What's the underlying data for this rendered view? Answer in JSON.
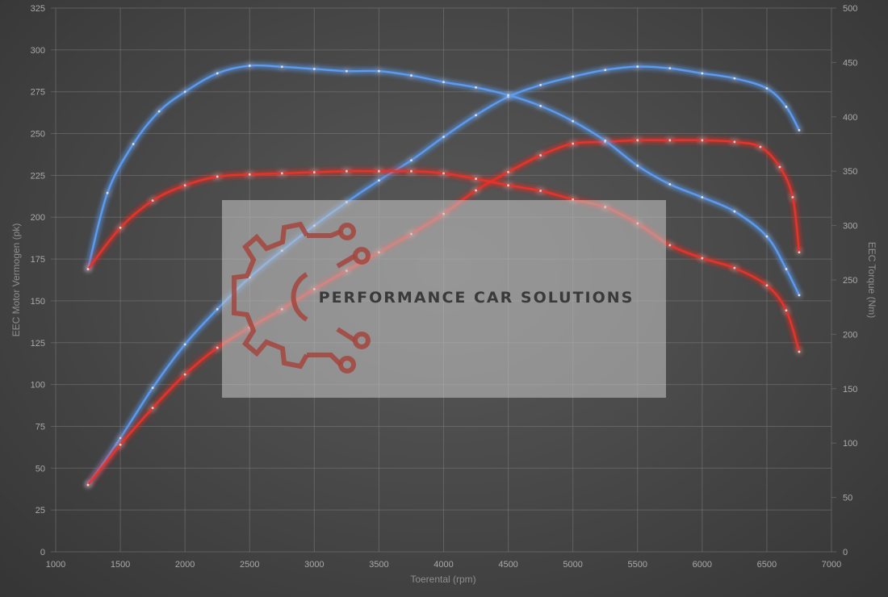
{
  "chart_data": {
    "type": "line",
    "xlabel": "Toerental (rpm)",
    "ylabel_left": "EEC Motor Vermogen (pk)",
    "ylabel_right": "EEC Torque (Nm)",
    "xlim": [
      1000,
      7000
    ],
    "ylim_left": [
      0,
      325
    ],
    "ylim_right": [
      0,
      500
    ],
    "x_ticks": [
      1000,
      1500,
      2000,
      2500,
      3000,
      3500,
      4000,
      4500,
      5000,
      5500,
      6000,
      6500,
      7000
    ],
    "y_left_ticks": [
      0,
      25,
      50,
      75,
      100,
      125,
      150,
      175,
      200,
      225,
      250,
      275,
      300,
      325
    ],
    "y_right_ticks": [
      0,
      50,
      100,
      150,
      200,
      250,
      300,
      350,
      400,
      450,
      500
    ],
    "grid": true,
    "series": [
      {
        "axis": "left",
        "color": "#5b9bf0",
        "points": [
          [
            1250,
            40
          ],
          [
            1500,
            68
          ],
          [
            1750,
            98
          ],
          [
            2000,
            124
          ],
          [
            2250,
            145
          ],
          [
            2500,
            164
          ],
          [
            2750,
            180
          ],
          [
            3000,
            195
          ],
          [
            3250,
            209
          ],
          [
            3500,
            222
          ],
          [
            3750,
            234
          ],
          [
            4000,
            248
          ],
          [
            4250,
            261
          ],
          [
            4500,
            272
          ],
          [
            4750,
            279
          ],
          [
            5000,
            284
          ],
          [
            5250,
            288
          ],
          [
            5500,
            290
          ],
          [
            5750,
            289
          ],
          [
            6000,
            286
          ],
          [
            6250,
            283
          ],
          [
            6500,
            277
          ],
          [
            6650,
            266
          ],
          [
            6750,
            252
          ]
        ]
      },
      {
        "axis": "left",
        "color": "#e8322b",
        "points": [
          [
            1250,
            40
          ],
          [
            1500,
            64
          ],
          [
            1750,
            86
          ],
          [
            2000,
            106
          ],
          [
            2250,
            122
          ],
          [
            2500,
            134
          ],
          [
            2750,
            145
          ],
          [
            3000,
            157
          ],
          [
            3250,
            168
          ],
          [
            3500,
            179
          ],
          [
            3750,
            190
          ],
          [
            4000,
            202
          ],
          [
            4250,
            216
          ],
          [
            4500,
            227
          ],
          [
            4750,
            237
          ],
          [
            5000,
            244
          ],
          [
            5250,
            245
          ],
          [
            5500,
            246
          ],
          [
            5750,
            246
          ],
          [
            6000,
            246
          ],
          [
            6250,
            245
          ],
          [
            6450,
            242
          ],
          [
            6600,
            230
          ],
          [
            6700,
            212
          ],
          [
            6750,
            179
          ]
        ]
      },
      {
        "axis": "right",
        "color": "#5b9bf0",
        "points": [
          [
            1250,
            260
          ],
          [
            1400,
            330
          ],
          [
            1600,
            375
          ],
          [
            1800,
            405
          ],
          [
            2000,
            423
          ],
          [
            2250,
            440
          ],
          [
            2500,
            447
          ],
          [
            2750,
            446
          ],
          [
            3000,
            444
          ],
          [
            3250,
            442
          ],
          [
            3500,
            442
          ],
          [
            3750,
            438
          ],
          [
            4000,
            432
          ],
          [
            4250,
            427
          ],
          [
            4500,
            420
          ],
          [
            4750,
            410
          ],
          [
            5000,
            396
          ],
          [
            5250,
            378
          ],
          [
            5500,
            355
          ],
          [
            5750,
            338
          ],
          [
            6000,
            326
          ],
          [
            6250,
            313
          ],
          [
            6500,
            290
          ],
          [
            6650,
            260
          ],
          [
            6750,
            236
          ]
        ]
      },
      {
        "axis": "right",
        "color": "#e8322b",
        "points": [
          [
            1250,
            260
          ],
          [
            1500,
            298
          ],
          [
            1750,
            323
          ],
          [
            2000,
            337
          ],
          [
            2250,
            345
          ],
          [
            2500,
            347
          ],
          [
            2750,
            348
          ],
          [
            3000,
            349
          ],
          [
            3250,
            350
          ],
          [
            3500,
            350
          ],
          [
            3750,
            350
          ],
          [
            4000,
            348
          ],
          [
            4250,
            343
          ],
          [
            4500,
            337
          ],
          [
            4750,
            332
          ],
          [
            5000,
            324
          ],
          [
            5250,
            317
          ],
          [
            5500,
            302
          ],
          [
            5750,
            282
          ],
          [
            6000,
            270
          ],
          [
            6250,
            261
          ],
          [
            6500,
            245
          ],
          [
            6650,
            222
          ],
          [
            6750,
            184
          ]
        ]
      }
    ]
  },
  "watermark": {
    "text": "PERFORMANCE CAR SOLUTIONS",
    "logo_icon": "gear-circuit-icon",
    "logo_color": "#a3453d"
  }
}
